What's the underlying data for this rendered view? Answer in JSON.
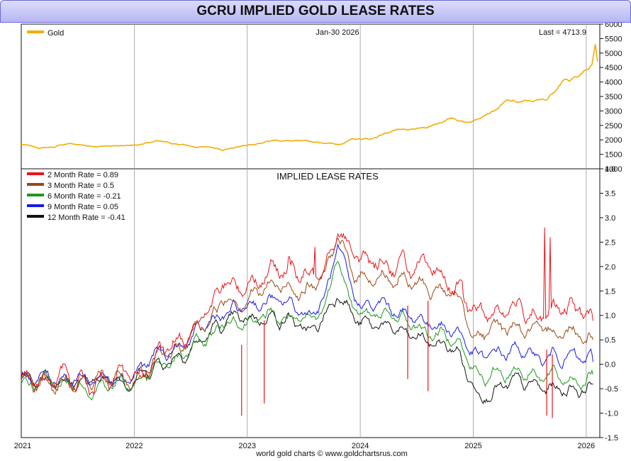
{
  "title": "GCRU IMPLIED GOLD LEASE RATES",
  "date_label": "Jan-30  2026",
  "last_label": "Last = 4713.9",
  "footer": "world gold charts © www.goldchartsrus.com",
  "colors": {
    "gold": "#f2ad00",
    "m2": "#e8141a",
    "m3": "#9b4712",
    "m6": "#1a9a1a",
    "m9": "#1818e6",
    "m12": "#111111",
    "grid": "#9a9a9a",
    "axis": "#111111"
  },
  "chart_data": [
    {
      "type": "line",
      "panel": "top",
      "legend_position": "top-left",
      "x_ticks": [
        "2021",
        "2022",
        "2023",
        "2024",
        "2025",
        "2026"
      ],
      "x_range": [
        2021.0,
        2026.12
      ],
      "ylim": [
        1000,
        6000
      ],
      "yticks": [
        "1000",
        "1500",
        "2000",
        "2500",
        "3000",
        "3500",
        "4000",
        "4500",
        "5000",
        "5500",
        "6000"
      ],
      "series": [
        {
          "name": "Gold",
          "label": "Gold",
          "color_key": "gold",
          "noise": 0.008,
          "points": [
            [
              2021.0,
              1850
            ],
            [
              2021.08,
              1780
            ],
            [
              2021.17,
              1720
            ],
            [
              2021.3,
              1760
            ],
            [
              2021.42,
              1880
            ],
            [
              2021.55,
              1810
            ],
            [
              2021.68,
              1770
            ],
            [
              2021.8,
              1800
            ],
            [
              2021.95,
              1810
            ],
            [
              2022.08,
              1860
            ],
            [
              2022.2,
              1950
            ],
            [
              2022.3,
              1900
            ],
            [
              2022.45,
              1820
            ],
            [
              2022.55,
              1740
            ],
            [
              2022.65,
              1760
            ],
            [
              2022.78,
              1650
            ],
            [
              2022.9,
              1760
            ],
            [
              2023.0,
              1830
            ],
            [
              2023.1,
              1900
            ],
            [
              2023.25,
              1990
            ],
            [
              2023.4,
              1960
            ],
            [
              2023.55,
              1930
            ],
            [
              2023.7,
              1900
            ],
            [
              2023.8,
              1840
            ],
            [
              2023.92,
              2000
            ],
            [
              2024.0,
              2030
            ],
            [
              2024.1,
              2030
            ],
            [
              2024.2,
              2200
            ],
            [
              2024.3,
              2330
            ],
            [
              2024.45,
              2330
            ],
            [
              2024.6,
              2450
            ],
            [
              2024.72,
              2630
            ],
            [
              2024.82,
              2750
            ],
            [
              2024.92,
              2620
            ],
            [
              2025.0,
              2650
            ],
            [
              2025.1,
              2900
            ],
            [
              2025.2,
              3050
            ],
            [
              2025.3,
              3350
            ],
            [
              2025.4,
              3300
            ],
            [
              2025.55,
              3350
            ],
            [
              2025.65,
              3400
            ],
            [
              2025.72,
              3700
            ],
            [
              2025.8,
              4150
            ],
            [
              2025.85,
              4000
            ],
            [
              2025.95,
              4300
            ],
            [
              2026.0,
              4400
            ],
            [
              2026.05,
              4550
            ],
            [
              2026.08,
              5300
            ],
            [
              2026.1,
              4713.9
            ]
          ]
        }
      ]
    },
    {
      "type": "line",
      "panel": "bottom",
      "title": "IMPLIED LEASE RATES",
      "legend_position": "top-left",
      "ylim": [
        -1.5,
        4.0
      ],
      "yticks": [
        "-1.5",
        "-1.0",
        "-0.5",
        "0.0",
        "0.5",
        "1.0",
        "1.5",
        "2.0",
        "2.5",
        "3.0",
        "3.5",
        "4.0"
      ],
      "series": [
        {
          "name": "2 Month Rate",
          "label": "2 Month Rate  = 0.89",
          "color_key": "m2",
          "noise": 0.16,
          "points": [
            [
              2021.0,
              -0.3
            ],
            [
              2021.3,
              -0.3
            ],
            [
              2021.6,
              -0.4
            ],
            [
              2021.8,
              -0.3
            ],
            [
              2022.0,
              -0.3
            ],
            [
              2022.2,
              0.1
            ],
            [
              2022.4,
              0.4
            ],
            [
              2022.55,
              0.9
            ],
            [
              2022.7,
              1.2
            ],
            [
              2022.8,
              1.7
            ],
            [
              2022.9,
              1.5
            ],
            [
              2023.0,
              1.7
            ],
            [
              2023.2,
              1.9
            ],
            [
              2023.4,
              2.0
            ],
            [
              2023.55,
              1.7
            ],
            [
              2023.7,
              2.2
            ],
            [
              2023.8,
              2.9
            ],
            [
              2023.9,
              2.4
            ],
            [
              2024.0,
              2.1
            ],
            [
              2024.2,
              2.1
            ],
            [
              2024.4,
              2.0
            ],
            [
              2024.55,
              1.9
            ],
            [
              2024.7,
              1.8
            ],
            [
              2024.85,
              1.6
            ],
            [
              2024.95,
              1.2
            ],
            [
              2025.05,
              1.0
            ],
            [
              2025.2,
              1.1
            ],
            [
              2025.4,
              1.2
            ],
            [
              2025.6,
              1.0
            ],
            [
              2025.8,
              1.1
            ],
            [
              2025.95,
              1.1
            ],
            [
              2026.06,
              0.89
            ]
          ],
          "spikes": [
            [
              2023.37,
              2.2
            ],
            [
              2023.6,
              2.4
            ],
            [
              2024.9,
              1.7
            ],
            [
              2025.63,
              2.8
            ],
            [
              2025.68,
              2.6
            ]
          ]
        },
        {
          "name": "3 Month Rate",
          "label": "3 Month Rate  = 0.5",
          "color_key": "m3",
          "noise": 0.13,
          "points": [
            [
              2021.0,
              -0.35
            ],
            [
              2021.3,
              -0.35
            ],
            [
              2021.6,
              -0.4
            ],
            [
              2021.8,
              -0.35
            ],
            [
              2022.0,
              -0.35
            ],
            [
              2022.2,
              0.0
            ],
            [
              2022.4,
              0.3
            ],
            [
              2022.55,
              0.7
            ],
            [
              2022.7,
              1.0
            ],
            [
              2022.8,
              1.4
            ],
            [
              2022.9,
              1.3
            ],
            [
              2023.0,
              1.4
            ],
            [
              2023.2,
              1.6
            ],
            [
              2023.4,
              1.6
            ],
            [
              2023.55,
              1.5
            ],
            [
              2023.7,
              1.9
            ],
            [
              2023.8,
              2.6
            ],
            [
              2023.9,
              2.0
            ],
            [
              2024.0,
              1.8
            ],
            [
              2024.2,
              1.8
            ],
            [
              2024.4,
              1.7
            ],
            [
              2024.55,
              1.6
            ],
            [
              2024.7,
              1.5
            ],
            [
              2024.85,
              1.4
            ],
            [
              2024.95,
              0.9
            ],
            [
              2025.05,
              0.6
            ],
            [
              2025.2,
              0.7
            ],
            [
              2025.4,
              0.8
            ],
            [
              2025.6,
              0.6
            ],
            [
              2025.8,
              0.7
            ],
            [
              2025.95,
              0.7
            ],
            [
              2026.06,
              0.5
            ]
          ]
        },
        {
          "name": "6 Month Rate",
          "label": "6 Month Rate  = -0.21",
          "color_key": "m6",
          "noise": 0.11,
          "points": [
            [
              2021.0,
              -0.4
            ],
            [
              2021.3,
              -0.35
            ],
            [
              2021.6,
              -0.45
            ],
            [
              2021.8,
              -0.4
            ],
            [
              2022.0,
              -0.4
            ],
            [
              2022.2,
              -0.1
            ],
            [
              2022.4,
              0.1
            ],
            [
              2022.55,
              0.4
            ],
            [
              2022.7,
              0.6
            ],
            [
              2022.8,
              0.9
            ],
            [
              2022.9,
              0.9
            ],
            [
              2023.0,
              0.9
            ],
            [
              2023.2,
              1.0
            ],
            [
              2023.4,
              0.9
            ],
            [
              2023.55,
              0.8
            ],
            [
              2023.7,
              1.2
            ],
            [
              2023.8,
              2.3
            ],
            [
              2023.9,
              1.4
            ],
            [
              2024.0,
              1.0
            ],
            [
              2024.2,
              1.0
            ],
            [
              2024.4,
              0.9
            ],
            [
              2024.55,
              0.7
            ],
            [
              2024.7,
              0.6
            ],
            [
              2024.85,
              0.6
            ],
            [
              2024.95,
              0.1
            ],
            [
              2025.05,
              -0.3
            ],
            [
              2025.2,
              -0.2
            ],
            [
              2025.4,
              -0.1
            ],
            [
              2025.6,
              -0.2
            ],
            [
              2025.8,
              -0.3
            ],
            [
              2025.95,
              -0.3
            ],
            [
              2026.06,
              -0.21
            ]
          ]
        },
        {
          "name": "9 Month Rate",
          "label": "9 Month Rate  = 0.05",
          "color_key": "m9",
          "noise": 0.11,
          "points": [
            [
              2021.0,
              -0.3
            ],
            [
              2021.3,
              -0.25
            ],
            [
              2021.6,
              -0.3
            ],
            [
              2021.8,
              -0.25
            ],
            [
              2022.0,
              -0.2
            ],
            [
              2022.2,
              0.2
            ],
            [
              2022.4,
              0.3
            ],
            [
              2022.55,
              0.6
            ],
            [
              2022.7,
              0.9
            ],
            [
              2022.8,
              1.0
            ],
            [
              2022.9,
              1.1
            ],
            [
              2023.0,
              1.2
            ],
            [
              2023.2,
              1.3
            ],
            [
              2023.4,
              1.2
            ],
            [
              2023.55,
              1.0
            ],
            [
              2023.7,
              1.4
            ],
            [
              2023.8,
              2.4
            ],
            [
              2023.9,
              1.6
            ],
            [
              2024.0,
              1.2
            ],
            [
              2024.2,
              1.2
            ],
            [
              2024.4,
              1.0
            ],
            [
              2024.55,
              0.9
            ],
            [
              2024.7,
              0.8
            ],
            [
              2024.85,
              0.7
            ],
            [
              2024.95,
              0.4
            ],
            [
              2025.05,
              0.1
            ],
            [
              2025.2,
              0.2
            ],
            [
              2025.4,
              0.3
            ],
            [
              2025.6,
              0.1
            ],
            [
              2025.8,
              0.2
            ],
            [
              2025.95,
              0.1
            ],
            [
              2026.06,
              0.05
            ]
          ]
        },
        {
          "name": "12 Month Rate",
          "label": "12 Month Rate  = -0.41",
          "color_key": "m12",
          "noise": 0.11,
          "points": [
            [
              2021.0,
              -0.3
            ],
            [
              2021.3,
              -0.3
            ],
            [
              2021.6,
              -0.35
            ],
            [
              2021.8,
              -0.3
            ],
            [
              2022.0,
              -0.3
            ],
            [
              2022.2,
              0.0
            ],
            [
              2022.4,
              0.2
            ],
            [
              2022.55,
              0.4
            ],
            [
              2022.7,
              0.7
            ],
            [
              2022.8,
              0.8
            ],
            [
              2022.9,
              0.9
            ],
            [
              2023.0,
              0.9
            ],
            [
              2023.2,
              1.0
            ],
            [
              2023.4,
              0.9
            ],
            [
              2023.55,
              0.6
            ],
            [
              2023.7,
              1.0
            ],
            [
              2023.8,
              1.5
            ],
            [
              2023.9,
              1.2
            ],
            [
              2024.0,
              0.8
            ],
            [
              2024.2,
              0.8
            ],
            [
              2024.4,
              0.6
            ],
            [
              2024.55,
              0.5
            ],
            [
              2024.7,
              0.4
            ],
            [
              2024.85,
              0.3
            ],
            [
              2024.95,
              -0.2
            ],
            [
              2025.05,
              -0.6
            ],
            [
              2025.2,
              -0.5
            ],
            [
              2025.4,
              -0.4
            ],
            [
              2025.6,
              -0.5
            ],
            [
              2025.8,
              -0.5
            ],
            [
              2025.95,
              -0.5
            ],
            [
              2026.06,
              -0.41
            ]
          ]
        }
      ]
    }
  ]
}
